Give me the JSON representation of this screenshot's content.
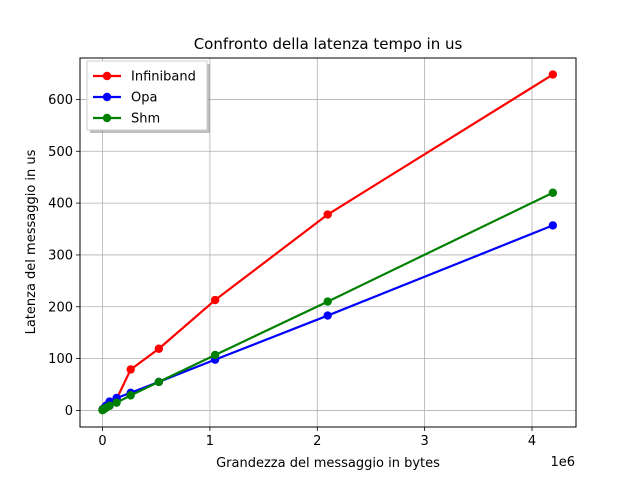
{
  "chart_data": {
    "type": "line",
    "title": "Confronto della latenza tempo in us",
    "xlabel": "Grandezza del messaggio in bytes",
    "ylabel": "Latenza del messaggio in us",
    "x_exponent_label": "1e6",
    "x_tick_values": [
      0,
      1,
      2,
      3,
      4
    ],
    "x_tick_labels": [
      "0",
      "1",
      "2",
      "3",
      "4"
    ],
    "y_tick_values": [
      0,
      100,
      200,
      300,
      400,
      500,
      600
    ],
    "y_tick_labels": [
      "0",
      "100",
      "200",
      "300",
      "400",
      "500",
      "600"
    ],
    "xlim": [
      -210000,
      4410000
    ],
    "ylim": [
      -32,
      680
    ],
    "grid": true,
    "legend_position": "upper-left",
    "series": [
      {
        "name": "Infiniband",
        "color": "#ff0000",
        "x": [
          0,
          1024,
          2048,
          4096,
          8192,
          16384,
          32768,
          65536,
          131072,
          262144,
          524288,
          1048576,
          2097152,
          4194304
        ],
        "y": [
          1,
          1.5,
          2,
          2.5,
          3,
          4,
          7,
          12,
          22,
          79,
          119,
          213,
          378,
          648
        ]
      },
      {
        "name": "Opa",
        "color": "#0000ff",
        "x": [
          0,
          1024,
          2048,
          4096,
          8192,
          16384,
          32768,
          65536,
          131072,
          262144,
          524288,
          1048576,
          2097152,
          4194304
        ],
        "y": [
          1,
          1.5,
          2,
          2.5,
          3,
          5,
          9,
          17,
          24,
          34,
          55,
          98,
          183,
          357
        ]
      },
      {
        "name": "Shm",
        "color": "#008000",
        "x": [
          0,
          1024,
          2048,
          4096,
          8192,
          16384,
          32768,
          65536,
          131072,
          262144,
          524288,
          1048576,
          2097152,
          4194304
        ],
        "y": [
          0.5,
          1,
          1.5,
          2,
          2.5,
          3,
          5,
          9,
          15,
          29,
          55,
          107,
          210,
          420
        ]
      }
    ]
  }
}
